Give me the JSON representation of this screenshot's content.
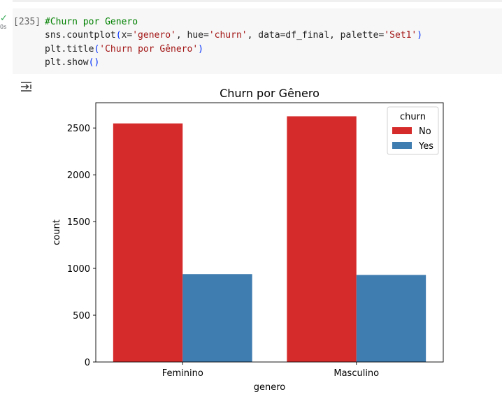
{
  "cell": {
    "exec_count": "[235]",
    "status_check": "✓",
    "duration": "0s",
    "code_lines": [
      [
        {
          "t": "#Churn por Genero",
          "c": "comment"
        }
      ],
      [
        {
          "t": "sns.countplot"
        },
        {
          "t": "(",
          "c": "paren"
        },
        {
          "t": "x="
        },
        {
          "t": "'genero'",
          "c": "str"
        },
        {
          "t": ", hue="
        },
        {
          "t": "'churn'",
          "c": "str"
        },
        {
          "t": ", data=df_final, palette="
        },
        {
          "t": "'Set1'",
          "c": "str"
        },
        {
          "t": ")",
          "c": "paren"
        }
      ],
      [
        {
          "t": "plt.title"
        },
        {
          "t": "(",
          "c": "paren"
        },
        {
          "t": "'Churn por Gênero'",
          "c": "str"
        },
        {
          "t": ")",
          "c": "paren"
        }
      ],
      [
        {
          "t": "plt.show"
        },
        {
          "t": "()",
          "c": "paren"
        }
      ]
    ]
  },
  "output": {
    "icon": "output-toggle-icon"
  },
  "chart_data": {
    "type": "bar",
    "title": "Churn por Gênero",
    "xlabel": "genero",
    "ylabel": "count",
    "categories": [
      "Feminino",
      "Masculino"
    ],
    "series": [
      {
        "name": "No",
        "values": [
          2549,
          2625
        ],
        "color": "#d62b2b"
      },
      {
        "name": "Yes",
        "values": [
          939,
          930
        ],
        "color": "#3f7cb0"
      }
    ],
    "ylim": [
      0,
      2770
    ],
    "yticks": [
      0,
      500,
      1000,
      1500,
      2000,
      2500
    ],
    "legend": {
      "title": "churn",
      "placement": "top-right"
    },
    "grid": false
  }
}
